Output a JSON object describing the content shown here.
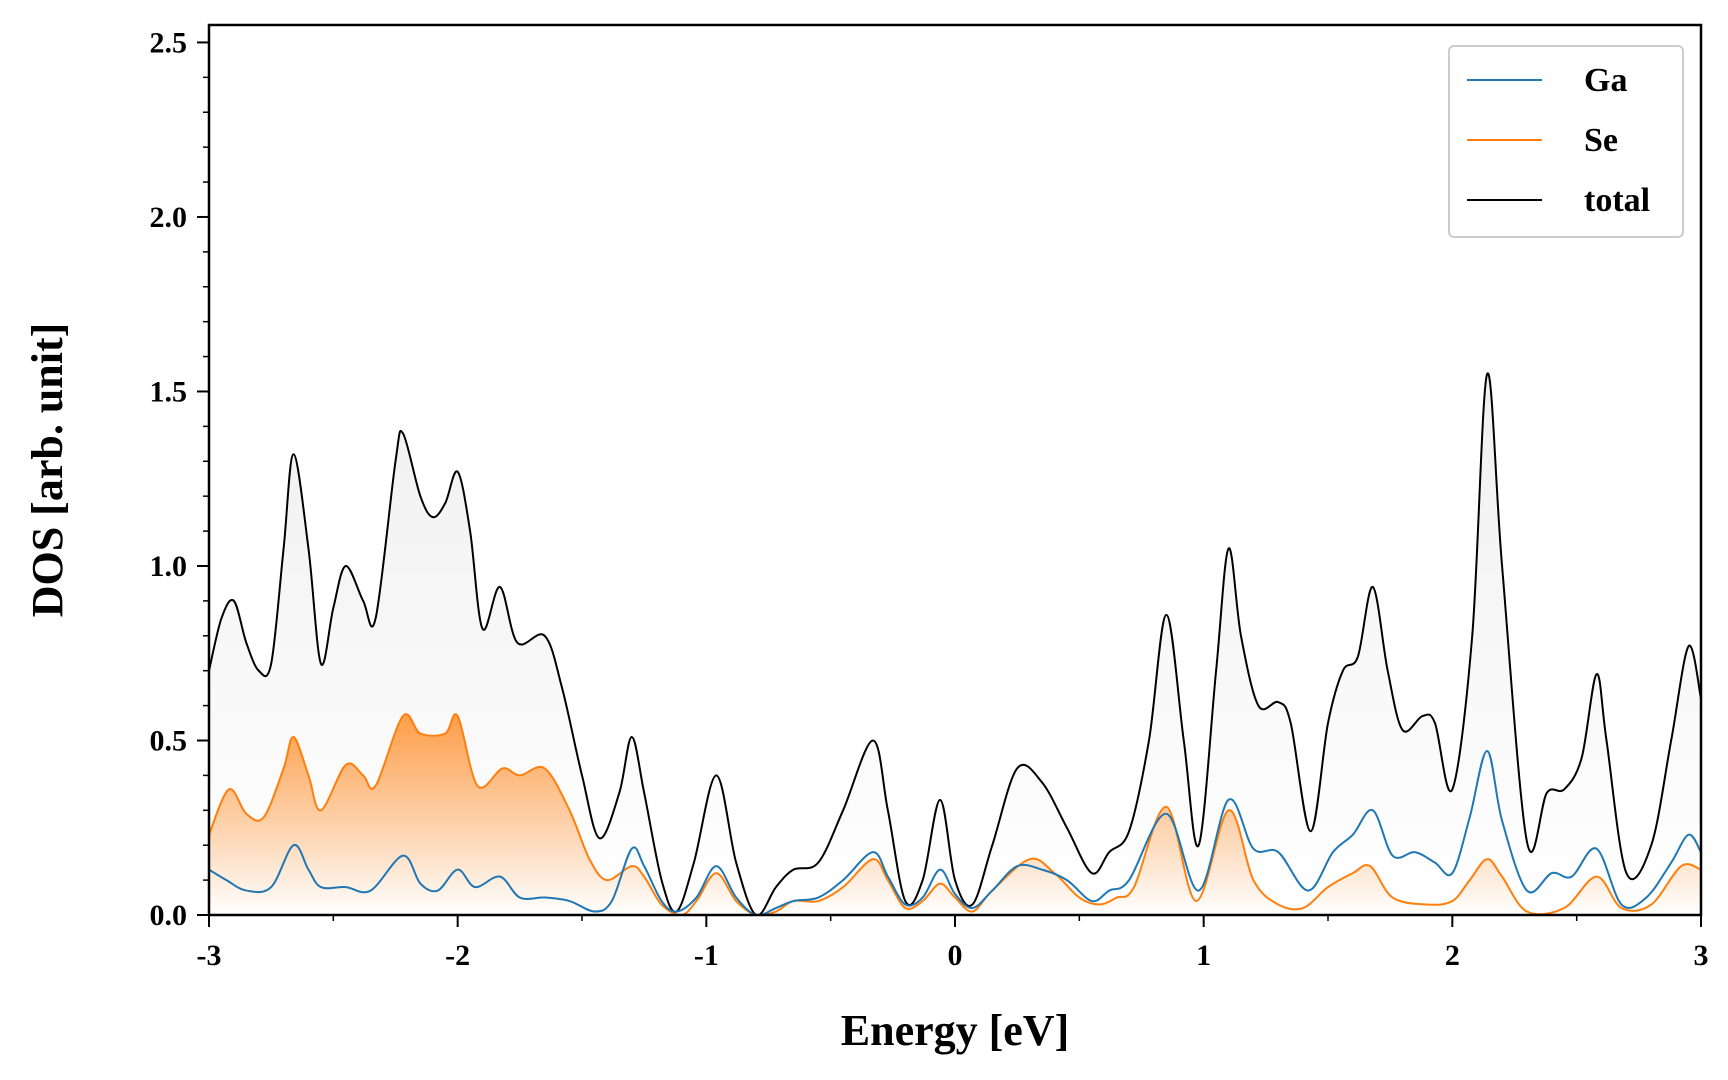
{
  "chart_data": {
    "type": "line",
    "xlabel": "Energy [eV]",
    "ylabel": "DOS [arb. unit]",
    "xlim": [
      -3,
      3
    ],
    "ylim": [
      0,
      2.55
    ],
    "xticks": [
      -3,
      -2,
      -1,
      0,
      1,
      2,
      3
    ],
    "xtick_labels": [
      "-3",
      "-2",
      "-1",
      "0",
      "1",
      "2",
      "3"
    ],
    "yticks": [
      0.0,
      0.5,
      1.0,
      1.5,
      2.0,
      2.5
    ],
    "ytick_labels": [
      "0.0",
      "0.5",
      "1.0",
      "1.5",
      "2.0",
      "2.5"
    ],
    "grid": false,
    "legend_position": "top-right",
    "series": [
      {
        "name": "Ga",
        "color": "#1f77b4",
        "fill": false,
        "points": [
          [
            -3.0,
            0.13
          ],
          [
            -2.93,
            0.1
          ],
          [
            -2.85,
            0.07
          ],
          [
            -2.75,
            0.08
          ],
          [
            -2.66,
            0.2
          ],
          [
            -2.6,
            0.13
          ],
          [
            -2.55,
            0.08
          ],
          [
            -2.45,
            0.08
          ],
          [
            -2.35,
            0.07
          ],
          [
            -2.22,
            0.17
          ],
          [
            -2.15,
            0.09
          ],
          [
            -2.08,
            0.07
          ],
          [
            -2.0,
            0.13
          ],
          [
            -1.93,
            0.08
          ],
          [
            -1.83,
            0.11
          ],
          [
            -1.75,
            0.05
          ],
          [
            -1.65,
            0.05
          ],
          [
            -1.55,
            0.04
          ],
          [
            -1.45,
            0.01
          ],
          [
            -1.38,
            0.04
          ],
          [
            -1.3,
            0.19
          ],
          [
            -1.25,
            0.14
          ],
          [
            -1.18,
            0.04
          ],
          [
            -1.12,
            0.01
          ],
          [
            -1.04,
            0.05
          ],
          [
            -0.96,
            0.14
          ],
          [
            -0.88,
            0.05
          ],
          [
            -0.8,
            0.0
          ],
          [
            -0.72,
            0.02
          ],
          [
            -0.65,
            0.04
          ],
          [
            -0.55,
            0.05
          ],
          [
            -0.45,
            0.1
          ],
          [
            -0.33,
            0.18
          ],
          [
            -0.27,
            0.11
          ],
          [
            -0.2,
            0.03
          ],
          [
            -0.13,
            0.05
          ],
          [
            -0.06,
            0.13
          ],
          [
            0.0,
            0.06
          ],
          [
            0.07,
            0.02
          ],
          [
            0.15,
            0.07
          ],
          [
            0.25,
            0.14
          ],
          [
            0.35,
            0.13
          ],
          [
            0.45,
            0.1
          ],
          [
            0.55,
            0.04
          ],
          [
            0.62,
            0.07
          ],
          [
            0.7,
            0.1
          ],
          [
            0.85,
            0.29
          ],
          [
            0.98,
            0.07
          ],
          [
            1.1,
            0.33
          ],
          [
            1.2,
            0.19
          ],
          [
            1.3,
            0.18
          ],
          [
            1.42,
            0.07
          ],
          [
            1.52,
            0.18
          ],
          [
            1.6,
            0.23
          ],
          [
            1.68,
            0.3
          ],
          [
            1.76,
            0.17
          ],
          [
            1.85,
            0.18
          ],
          [
            1.93,
            0.15
          ],
          [
            2.0,
            0.12
          ],
          [
            2.07,
            0.28
          ],
          [
            2.14,
            0.47
          ],
          [
            2.2,
            0.27
          ],
          [
            2.3,
            0.07
          ],
          [
            2.4,
            0.12
          ],
          [
            2.48,
            0.11
          ],
          [
            2.58,
            0.19
          ],
          [
            2.68,
            0.03
          ],
          [
            2.78,
            0.05
          ],
          [
            2.88,
            0.15
          ],
          [
            2.95,
            0.23
          ],
          [
            3.0,
            0.18
          ]
        ]
      },
      {
        "name": "Se",
        "color": "#ff7f0e",
        "fill": true,
        "points": [
          [
            -3.0,
            0.23
          ],
          [
            -2.92,
            0.36
          ],
          [
            -2.85,
            0.29
          ],
          [
            -2.78,
            0.28
          ],
          [
            -2.7,
            0.42
          ],
          [
            -2.66,
            0.51
          ],
          [
            -2.6,
            0.4
          ],
          [
            -2.55,
            0.3
          ],
          [
            -2.45,
            0.43
          ],
          [
            -2.38,
            0.4
          ],
          [
            -2.33,
            0.37
          ],
          [
            -2.22,
            0.57
          ],
          [
            -2.15,
            0.52
          ],
          [
            -2.05,
            0.52
          ],
          [
            -2.0,
            0.57
          ],
          [
            -1.92,
            0.37
          ],
          [
            -1.82,
            0.42
          ],
          [
            -1.75,
            0.4
          ],
          [
            -1.65,
            0.42
          ],
          [
            -1.55,
            0.3
          ],
          [
            -1.47,
            0.16
          ],
          [
            -1.4,
            0.1
          ],
          [
            -1.3,
            0.14
          ],
          [
            -1.25,
            0.11
          ],
          [
            -1.18,
            0.03
          ],
          [
            -1.1,
            0.0
          ],
          [
            -1.04,
            0.04
          ],
          [
            -0.96,
            0.12
          ],
          [
            -0.88,
            0.04
          ],
          [
            -0.8,
            0.0
          ],
          [
            -0.72,
            0.01
          ],
          [
            -0.65,
            0.04
          ],
          [
            -0.55,
            0.04
          ],
          [
            -0.45,
            0.08
          ],
          [
            -0.33,
            0.16
          ],
          [
            -0.27,
            0.1
          ],
          [
            -0.2,
            0.02
          ],
          [
            -0.13,
            0.04
          ],
          [
            -0.06,
            0.09
          ],
          [
            0.0,
            0.05
          ],
          [
            0.07,
            0.01
          ],
          [
            0.15,
            0.07
          ],
          [
            0.3,
            0.16
          ],
          [
            0.4,
            0.12
          ],
          [
            0.5,
            0.05
          ],
          [
            0.58,
            0.03
          ],
          [
            0.65,
            0.05
          ],
          [
            0.72,
            0.08
          ],
          [
            0.85,
            0.31
          ],
          [
            0.97,
            0.04
          ],
          [
            1.1,
            0.3
          ],
          [
            1.2,
            0.1
          ],
          [
            1.3,
            0.03
          ],
          [
            1.4,
            0.02
          ],
          [
            1.5,
            0.08
          ],
          [
            1.6,
            0.12
          ],
          [
            1.67,
            0.14
          ],
          [
            1.76,
            0.05
          ],
          [
            1.9,
            0.03
          ],
          [
            2.0,
            0.04
          ],
          [
            2.07,
            0.1
          ],
          [
            2.14,
            0.16
          ],
          [
            2.2,
            0.11
          ],
          [
            2.3,
            0.01
          ],
          [
            2.45,
            0.02
          ],
          [
            2.58,
            0.11
          ],
          [
            2.68,
            0.02
          ],
          [
            2.8,
            0.03
          ],
          [
            2.92,
            0.14
          ],
          [
            3.0,
            0.13
          ]
        ]
      },
      {
        "name": "total",
        "color": "#000000",
        "fill": true,
        "points": [
          [
            -3.0,
            0.7
          ],
          [
            -2.95,
            0.85
          ],
          [
            -2.9,
            0.9
          ],
          [
            -2.85,
            0.78
          ],
          [
            -2.8,
            0.7
          ],
          [
            -2.75,
            0.72
          ],
          [
            -2.7,
            1.05
          ],
          [
            -2.66,
            1.32
          ],
          [
            -2.6,
            1.05
          ],
          [
            -2.55,
            0.72
          ],
          [
            -2.5,
            0.88
          ],
          [
            -2.45,
            1.0
          ],
          [
            -2.38,
            0.9
          ],
          [
            -2.33,
            0.85
          ],
          [
            -2.25,
            1.3
          ],
          [
            -2.22,
            1.38
          ],
          [
            -2.15,
            1.2
          ],
          [
            -2.1,
            1.14
          ],
          [
            -2.05,
            1.18
          ],
          [
            -2.0,
            1.27
          ],
          [
            -1.95,
            1.1
          ],
          [
            -1.9,
            0.82
          ],
          [
            -1.83,
            0.94
          ],
          [
            -1.76,
            0.78
          ],
          [
            -1.65,
            0.8
          ],
          [
            -1.58,
            0.65
          ],
          [
            -1.5,
            0.4
          ],
          [
            -1.43,
            0.22
          ],
          [
            -1.35,
            0.35
          ],
          [
            -1.3,
            0.51
          ],
          [
            -1.25,
            0.35
          ],
          [
            -1.18,
            0.1
          ],
          [
            -1.12,
            0.01
          ],
          [
            -1.05,
            0.15
          ],
          [
            -0.96,
            0.4
          ],
          [
            -0.88,
            0.15
          ],
          [
            -0.8,
            0.0
          ],
          [
            -0.72,
            0.08
          ],
          [
            -0.65,
            0.13
          ],
          [
            -0.55,
            0.15
          ],
          [
            -0.45,
            0.3
          ],
          [
            -0.33,
            0.5
          ],
          [
            -0.27,
            0.3
          ],
          [
            -0.2,
            0.04
          ],
          [
            -0.13,
            0.1
          ],
          [
            -0.06,
            0.33
          ],
          [
            0.0,
            0.1
          ],
          [
            0.07,
            0.03
          ],
          [
            0.15,
            0.2
          ],
          [
            0.25,
            0.42
          ],
          [
            0.35,
            0.38
          ],
          [
            0.45,
            0.25
          ],
          [
            0.55,
            0.12
          ],
          [
            0.62,
            0.18
          ],
          [
            0.7,
            0.24
          ],
          [
            0.78,
            0.5
          ],
          [
            0.85,
            0.86
          ],
          [
            0.92,
            0.5
          ],
          [
            0.98,
            0.2
          ],
          [
            1.05,
            0.7
          ],
          [
            1.1,
            1.05
          ],
          [
            1.15,
            0.8
          ],
          [
            1.22,
            0.6
          ],
          [
            1.3,
            0.61
          ],
          [
            1.35,
            0.55
          ],
          [
            1.43,
            0.24
          ],
          [
            1.5,
            0.55
          ],
          [
            1.56,
            0.7
          ],
          [
            1.62,
            0.74
          ],
          [
            1.68,
            0.94
          ],
          [
            1.74,
            0.7
          ],
          [
            1.8,
            0.53
          ],
          [
            1.88,
            0.57
          ],
          [
            1.93,
            0.55
          ],
          [
            2.0,
            0.36
          ],
          [
            2.08,
            0.8
          ],
          [
            2.14,
            1.55
          ],
          [
            2.2,
            1.0
          ],
          [
            2.3,
            0.21
          ],
          [
            2.38,
            0.35
          ],
          [
            2.45,
            0.36
          ],
          [
            2.52,
            0.45
          ],
          [
            2.58,
            0.69
          ],
          [
            2.62,
            0.5
          ],
          [
            2.7,
            0.12
          ],
          [
            2.8,
            0.2
          ],
          [
            2.88,
            0.5
          ],
          [
            2.95,
            0.77
          ],
          [
            3.0,
            0.62
          ]
        ]
      }
    ]
  }
}
